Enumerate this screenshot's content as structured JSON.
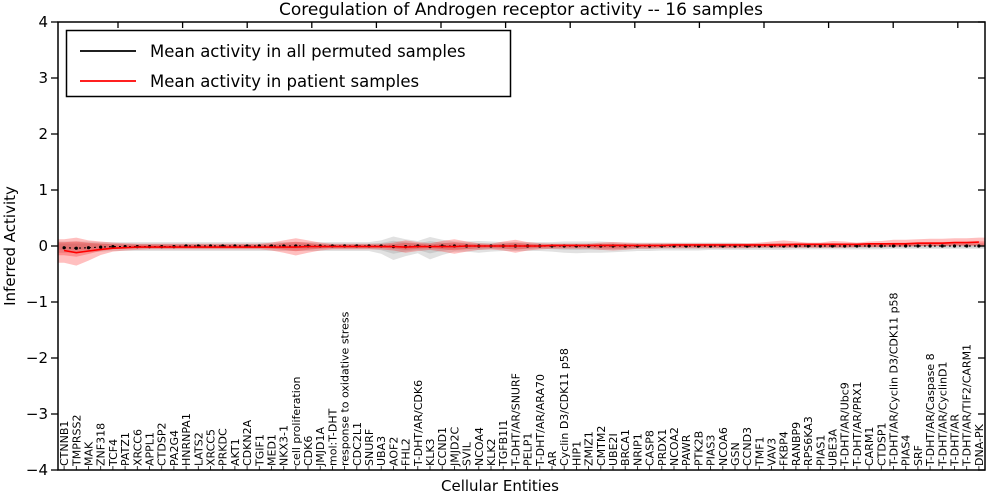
{
  "chart_data": {
    "type": "line",
    "title": "Coregulation of Androgen receptor activity -- 16 samples",
    "xlabel": "Cellular Entities",
    "ylabel": "Inferred Activity",
    "ylim": [
      -4,
      4
    ],
    "yticks": [
      4,
      3,
      2,
      1,
      0,
      -1,
      -2,
      -3,
      -4
    ],
    "grid": false,
    "legend_position": "upper left",
    "colors": {
      "permuted": "#000000",
      "patient": "#ff0000",
      "permuted_band": "#888888",
      "patient_band": "#ff0000"
    },
    "categories": [
      "CTNNB1",
      "TMPRSS2",
      "MAK",
      "ZNF318",
      "TCF4",
      "PATZ1",
      "XRCC6",
      "APPL1",
      "CTDSP2",
      "PA2G4",
      "HNRNPA1",
      "LATS2",
      "XRCC5",
      "PRKDC",
      "AKT1",
      "CDKN2A",
      "TGIF1",
      "MED1",
      "NKX3-1",
      "cell proliferation",
      "CDK6",
      "JMJD1A",
      "mol:T-DHT",
      "response to oxidative stress",
      "CDC2L1",
      "SNURF",
      "UBA3",
      "AOF2",
      "FHL2",
      "T-DHT/AR/CDK6",
      "KLK3",
      "CCND1",
      "JMJD2C",
      "SVIL",
      "NCOA4",
      "KLK2",
      "TGFB1I1",
      "T-DHT/AR/SNURF",
      "PELP1",
      "T-DHT/AR/ARA70",
      "AR",
      "Cyclin D3/CDK11 p58",
      "HIP1",
      "ZMIZ1",
      "CMTM2",
      "UBE2I",
      "BRCA1",
      "NRIP1",
      "CASP8",
      "PRDX1",
      "NCOA2",
      "PAWR",
      "PTK2B",
      "PIAS3",
      "NCOA6",
      "GSN",
      "CCND3",
      "TMF1",
      "VAV3",
      "FKBP4",
      "RANBP9",
      "RPS6KA3",
      "PIAS1",
      "UBE3A",
      "T-DHT/AR/Ubc9",
      "T-DHT/AR/PRX1",
      "CARM1",
      "CTDSP1",
      "T-DHT/AR/Cyclin D3/CDK11 p58",
      "PIAS4",
      "SRF",
      "T-DHT/AR/Caspase 8",
      "T-DHT/AR/CyclinD1",
      "T-DHT/AR",
      "T-DHT/AR/TIF2/CARM1",
      "DNA-PK"
    ],
    "series": [
      {
        "name": "Mean activity in all permuted samples",
        "color": "#000000",
        "style": "dotted-with-markers",
        "values": [
          -0.03,
          -0.04,
          -0.03,
          -0.02,
          -0.01,
          -0.01,
          -0.01,
          -0.01,
          -0.01,
          -0.01,
          0,
          0,
          0,
          0,
          0,
          0,
          0,
          0,
          0,
          0,
          0,
          0,
          0,
          0,
          0,
          0,
          0,
          -0.01,
          -0.01,
          0,
          -0.01,
          0,
          0,
          0,
          0,
          0,
          0,
          0,
          0,
          0,
          0,
          0,
          0,
          0,
          0,
          0,
          0,
          0,
          0,
          0,
          0,
          0,
          0,
          0,
          0,
          0,
          0,
          0,
          0,
          0,
          0,
          0,
          0,
          0,
          0,
          0,
          0,
          0,
          0,
          0,
          0,
          0,
          0,
          0,
          0,
          0
        ]
      },
      {
        "name": "Mean activity in patient samples",
        "color": "#ff0000",
        "style": "solid",
        "values": [
          -0.08,
          -0.12,
          -0.09,
          -0.06,
          -0.04,
          -0.03,
          -0.02,
          -0.02,
          -0.02,
          -0.02,
          -0.02,
          -0.02,
          -0.02,
          -0.02,
          -0.02,
          -0.02,
          -0.02,
          -0.02,
          -0.02,
          -0.02,
          -0.01,
          -0.01,
          -0.01,
          -0.01,
          -0.01,
          -0.01,
          -0.01,
          -0.01,
          -0.02,
          -0.01,
          -0.01,
          -0.01,
          -0.01,
          0,
          0,
          0,
          0,
          0,
          0,
          0,
          0.01,
          0.01,
          0.01,
          0.01,
          0.01,
          0.01,
          0.01,
          0.01,
          0.01,
          0.01,
          0.02,
          0.02,
          0.02,
          0.02,
          0.02,
          0.02,
          0.02,
          0.02,
          0.02,
          0.02,
          0.03,
          0.03,
          0.03,
          0.03,
          0.03,
          0.03,
          0.04,
          0.04,
          0.04,
          0.04,
          0.05,
          0.05,
          0.05,
          0.06,
          0.06,
          0.07
        ]
      }
    ],
    "bands": [
      {
        "name": "Permuted samples envelope",
        "color": "#888888",
        "opacity": 0.25,
        "lo": [
          -0.12,
          -0.12,
          -0.11,
          -0.1,
          -0.09,
          -0.09,
          -0.09,
          -0.09,
          -0.09,
          -0.09,
          -0.09,
          -0.09,
          -0.09,
          -0.09,
          -0.09,
          -0.09,
          -0.09,
          -0.09,
          -0.09,
          -0.09,
          -0.09,
          -0.09,
          -0.09,
          -0.09,
          -0.09,
          -0.09,
          -0.14,
          -0.25,
          -0.18,
          -0.13,
          -0.24,
          -0.16,
          -0.1,
          -0.1,
          -0.12,
          -0.1,
          -0.09,
          -0.09,
          -0.09,
          -0.09,
          -0.1,
          -0.12,
          -0.13,
          -0.12,
          -0.12,
          -0.11,
          -0.1,
          -0.09,
          -0.09,
          -0.08,
          -0.08,
          -0.08,
          -0.08,
          -0.07,
          -0.07,
          -0.07,
          -0.07,
          -0.07,
          -0.07,
          -0.07,
          -0.06,
          -0.06,
          -0.06,
          -0.06,
          -0.06,
          -0.06,
          -0.06,
          -0.06,
          -0.05,
          -0.05,
          -0.05,
          -0.05,
          -0.05,
          -0.05,
          -0.05,
          -0.05
        ],
        "hi": [
          0.08,
          0.08,
          0.08,
          0.07,
          0.07,
          0.07,
          0.07,
          0.07,
          0.07,
          0.07,
          0.07,
          0.07,
          0.07,
          0.07,
          0.07,
          0.07,
          0.07,
          0.07,
          0.07,
          0.07,
          0.07,
          0.07,
          0.07,
          0.07,
          0.07,
          0.07,
          0.1,
          0.17,
          0.12,
          0.09,
          0.16,
          0.11,
          0.08,
          0.08,
          0.09,
          0.08,
          0.07,
          0.07,
          0.07,
          0.07,
          0.07,
          0.08,
          0.08,
          0.08,
          0.08,
          0.07,
          0.06,
          0.06,
          0.06,
          0.06,
          0.06,
          0.06,
          0.06,
          0.06,
          0.06,
          0.06,
          0.05,
          0.05,
          0.05,
          0.05,
          0.05,
          0.05,
          0.05,
          0.05,
          0.05,
          0.05,
          0.05,
          0.05,
          0.05,
          0.05,
          0.05,
          0.05,
          0.05,
          0.05,
          0.05,
          0.05
        ]
      },
      {
        "name": "Patient samples envelope",
        "color": "#ff0000",
        "opacity": 0.25,
        "lo": [
          -0.3,
          -0.35,
          -0.26,
          -0.16,
          -0.1,
          -0.08,
          -0.07,
          -0.06,
          -0.06,
          -0.06,
          -0.06,
          -0.06,
          -0.06,
          -0.06,
          -0.06,
          -0.06,
          -0.06,
          -0.08,
          -0.12,
          -0.17,
          -0.12,
          -0.08,
          -0.06,
          -0.06,
          -0.06,
          -0.06,
          -0.06,
          -0.08,
          -0.12,
          -0.09,
          -0.07,
          -0.1,
          -0.14,
          -0.1,
          -0.07,
          -0.06,
          -0.08,
          -0.12,
          -0.08,
          -0.06,
          -0.05,
          -0.05,
          -0.05,
          -0.05,
          -0.07,
          -0.08,
          -0.07,
          -0.05,
          -0.05,
          -0.04,
          -0.04,
          -0.04,
          -0.04,
          -0.04,
          -0.04,
          -0.04,
          -0.04,
          -0.03,
          -0.03,
          -0.03,
          -0.03,
          -0.03,
          -0.03,
          -0.03,
          -0.03,
          -0.02,
          -0.02,
          -0.02,
          -0.01,
          -0.01,
          0,
          0,
          0,
          0.01,
          0.01,
          0.01
        ],
        "hi": [
          0.12,
          0.15,
          0.1,
          0.08,
          0.06,
          0.05,
          0.04,
          0.04,
          0.04,
          0.04,
          0.04,
          0.04,
          0.04,
          0.04,
          0.04,
          0.04,
          0.04,
          0.06,
          0.1,
          0.14,
          0.1,
          0.06,
          0.04,
          0.04,
          0.04,
          0.04,
          0.04,
          0.06,
          0.1,
          0.07,
          0.05,
          0.09,
          0.12,
          0.08,
          0.05,
          0.04,
          0.08,
          0.11,
          0.07,
          0.05,
          0.04,
          0.04,
          0.04,
          0.04,
          0.06,
          0.07,
          0.06,
          0.05,
          0.05,
          0.05,
          0.05,
          0.05,
          0.05,
          0.05,
          0.05,
          0.05,
          0.05,
          0.06,
          0.08,
          0.1,
          0.08,
          0.06,
          0.06,
          0.09,
          0.08,
          0.06,
          0.08,
          0.09,
          0.11,
          0.11,
          0.12,
          0.13,
          0.13,
          0.14,
          0.14,
          0.15
        ]
      }
    ]
  }
}
